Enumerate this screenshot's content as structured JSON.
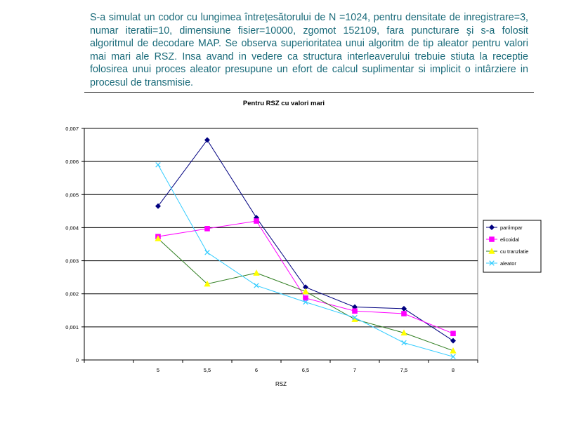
{
  "slide": {
    "text": "S-a simulat un codor cu lungimea întreţesătorului de N =1024, pentru densitate de inregistrare=3, numar iteratii=10, dimensiune fisier=10000, zgomot 152109, fara puncturare şi s-a folosit algoritmul de decodare MAP. Se observa superioritatea unui algoritm de tip aleator pentru valori mai mari ale RSZ. Insa avand in vedere ca structura interleaverului trebuie stiuta la receptie folosirea unui proces aleator presupune un efort de calcul suplimentar si implicit o intârziere in procesul de transmisie."
  },
  "chart_data": {
    "type": "line",
    "title": "Pentru RSZ cu valori mari",
    "xlabel": "RSZ",
    "ylabel": "",
    "x": [
      "5",
      "5,5",
      "6",
      "6,5",
      "7",
      "7,5",
      "8"
    ],
    "y_ticks": [
      "0",
      "0,001",
      "0,002",
      "0,003",
      "0,004",
      "0,005",
      "0,006",
      "0,007"
    ],
    "ylim": [
      0,
      0.007
    ],
    "grid": true,
    "legend_position": "right",
    "series": [
      {
        "name": "par/impar",
        "color": "#000080",
        "marker": "diamond",
        "values": [
          0.00465,
          0.00665,
          0.0043,
          0.0022,
          0.0016,
          0.00155,
          0.00058
        ]
      },
      {
        "name": "elicoidal",
        "color": "#ff00ff",
        "marker": "square",
        "values": [
          0.00373,
          0.00397,
          0.0042,
          0.00187,
          0.00148,
          0.0014,
          0.0008
        ]
      },
      {
        "name": "cu tranzlatie",
        "color": "#2e7d1f",
        "marker_color": "#ffff00",
        "marker": "triangle",
        "values": [
          0.00367,
          0.0023,
          0.00263,
          0.00207,
          0.00123,
          0.00082,
          0.00028
        ]
      },
      {
        "name": "aleator",
        "color": "#33ccff",
        "marker": "x",
        "values": [
          0.0059,
          0.00325,
          0.00225,
          0.00175,
          0.00128,
          0.00052,
          0.0001
        ]
      }
    ]
  }
}
